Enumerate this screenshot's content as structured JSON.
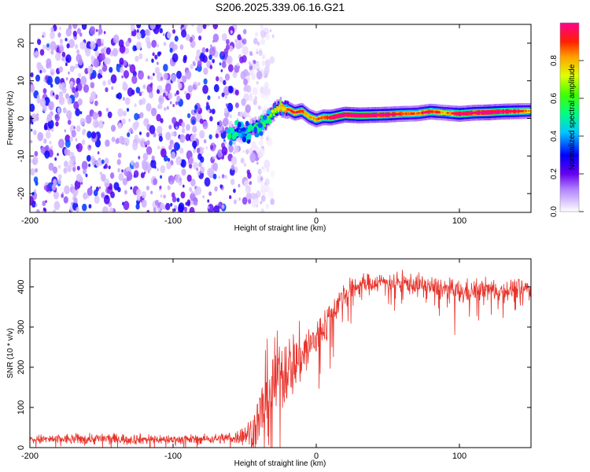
{
  "title": "S206.2025.339.06.16.G21",
  "chart_data": [
    {
      "type": "heatmap",
      "name": "spectrogram",
      "xlabel": "Height of straight line (km)",
      "ylabel": "Frequency (Hz)",
      "xlim": [
        -200,
        150
      ],
      "ylim": [
        -25,
        25
      ],
      "x_ticks": [
        -200,
        -100,
        0,
        100
      ],
      "y_ticks": [
        -20,
        -10,
        0,
        10,
        20
      ],
      "colorbar": {
        "label": "Normalized spectral amplitude",
        "range": [
          0,
          1
        ],
        "ticks": [
          0.0,
          0.2,
          0.4,
          0.6,
          0.8
        ]
      },
      "noise_region": {
        "x_range": [
          -200,
          -50
        ],
        "freq_range": [
          -25,
          25
        ],
        "amplitude_range": [
          0.05,
          0.35
        ]
      },
      "signal_ridge": {
        "x": [
          -60,
          -55,
          -50,
          -45,
          -40,
          -35,
          -30,
          -25,
          -20,
          -15,
          -10,
          -5,
          0,
          5,
          10,
          15,
          20,
          30,
          40,
          50,
          60,
          70,
          80,
          90,
          100,
          110,
          120,
          130,
          140,
          150
        ],
        "freq": [
          -4.5,
          -3.5,
          -4,
          -2.5,
          -2,
          -1,
          2,
          3,
          2.5,
          1.5,
          2,
          0.5,
          -0.3,
          0.3,
          0.2,
          0.6,
          1,
          0.8,
          0.9,
          1,
          1.2,
          1.3,
          1.8,
          1.5,
          1.2,
          1.5,
          1.6,
          1.8,
          1.9,
          2
        ],
        "amplitude": [
          0.25,
          0.3,
          0.35,
          0.45,
          0.5,
          0.55,
          0.6,
          0.7,
          0.75,
          0.8,
          0.8,
          0.7,
          0.75,
          0.8,
          0.9,
          0.95,
          0.95,
          0.95,
          0.9,
          0.9,
          0.8,
          0.75,
          0.85,
          0.7,
          0.9,
          0.85,
          0.95,
          0.9,
          0.85,
          0.7
        ]
      }
    },
    {
      "type": "line",
      "name": "snr",
      "xlabel": "Height of straight line (km)",
      "ylabel": "SNR (10 * v/v)",
      "xlim": [
        -200,
        150
      ],
      "ylim": [
        0,
        470
      ],
      "x_ticks": [
        -200,
        -100,
        0,
        100
      ],
      "y_ticks": [
        0,
        100,
        200,
        300,
        400
      ],
      "color": "#e8322a",
      "envelope": {
        "x": [
          -200,
          -150,
          -100,
          -70,
          -55,
          -45,
          -40,
          -35,
          -30,
          -25,
          -20,
          -15,
          -10,
          -5,
          0,
          5,
          10,
          15,
          20,
          25,
          30,
          40,
          50,
          60,
          70,
          80,
          90,
          100,
          110,
          120,
          130,
          140,
          150
        ],
        "mean": [
          20,
          22,
          20,
          22,
          26,
          40,
          70,
          120,
          170,
          180,
          200,
          210,
          230,
          250,
          270,
          300,
          330,
          360,
          380,
          395,
          405,
          410,
          415,
          410,
          405,
          400,
          395,
          385,
          390,
          395,
          390,
          395,
          395
        ],
        "spread": [
          15,
          18,
          15,
          15,
          22,
          50,
          90,
          150,
          140,
          130,
          110,
          100,
          90,
          80,
          70,
          60,
          55,
          45,
          40,
          35,
          35,
          30,
          30,
          30,
          35,
          35,
          35,
          40,
          35,
          35,
          35,
          35,
          35
        ]
      }
    }
  ]
}
